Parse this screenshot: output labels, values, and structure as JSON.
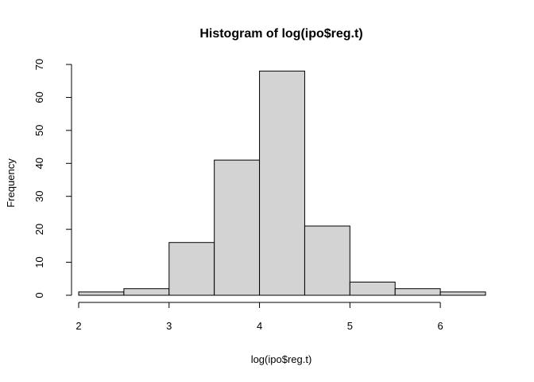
{
  "chart_data": {
    "type": "bar",
    "title": "Histogram of log(ipo$reg.t)",
    "xlabel": "log(ipo$reg.t)",
    "ylabel": "Frequency",
    "bins": [
      {
        "start": 2.0,
        "end": 2.5,
        "count": 1
      },
      {
        "start": 2.5,
        "end": 3.0,
        "count": 2
      },
      {
        "start": 3.0,
        "end": 3.5,
        "count": 16
      },
      {
        "start": 3.5,
        "end": 4.0,
        "count": 41
      },
      {
        "start": 4.0,
        "end": 4.5,
        "count": 68
      },
      {
        "start": 4.5,
        "end": 5.0,
        "count": 21
      },
      {
        "start": 5.0,
        "end": 5.5,
        "count": 4
      },
      {
        "start": 5.5,
        "end": 6.0,
        "count": 2
      },
      {
        "start": 6.0,
        "end": 6.5,
        "count": 1
      }
    ],
    "x_ticks": [
      2,
      3,
      4,
      5,
      6
    ],
    "y_ticks": [
      0,
      10,
      20,
      30,
      40,
      50,
      60,
      70
    ],
    "xlim": [
      2,
      6.5
    ],
    "ylim": [
      0,
      70
    ],
    "grid": false,
    "bar_color": "#d3d3d3",
    "border_color": "#000000"
  }
}
